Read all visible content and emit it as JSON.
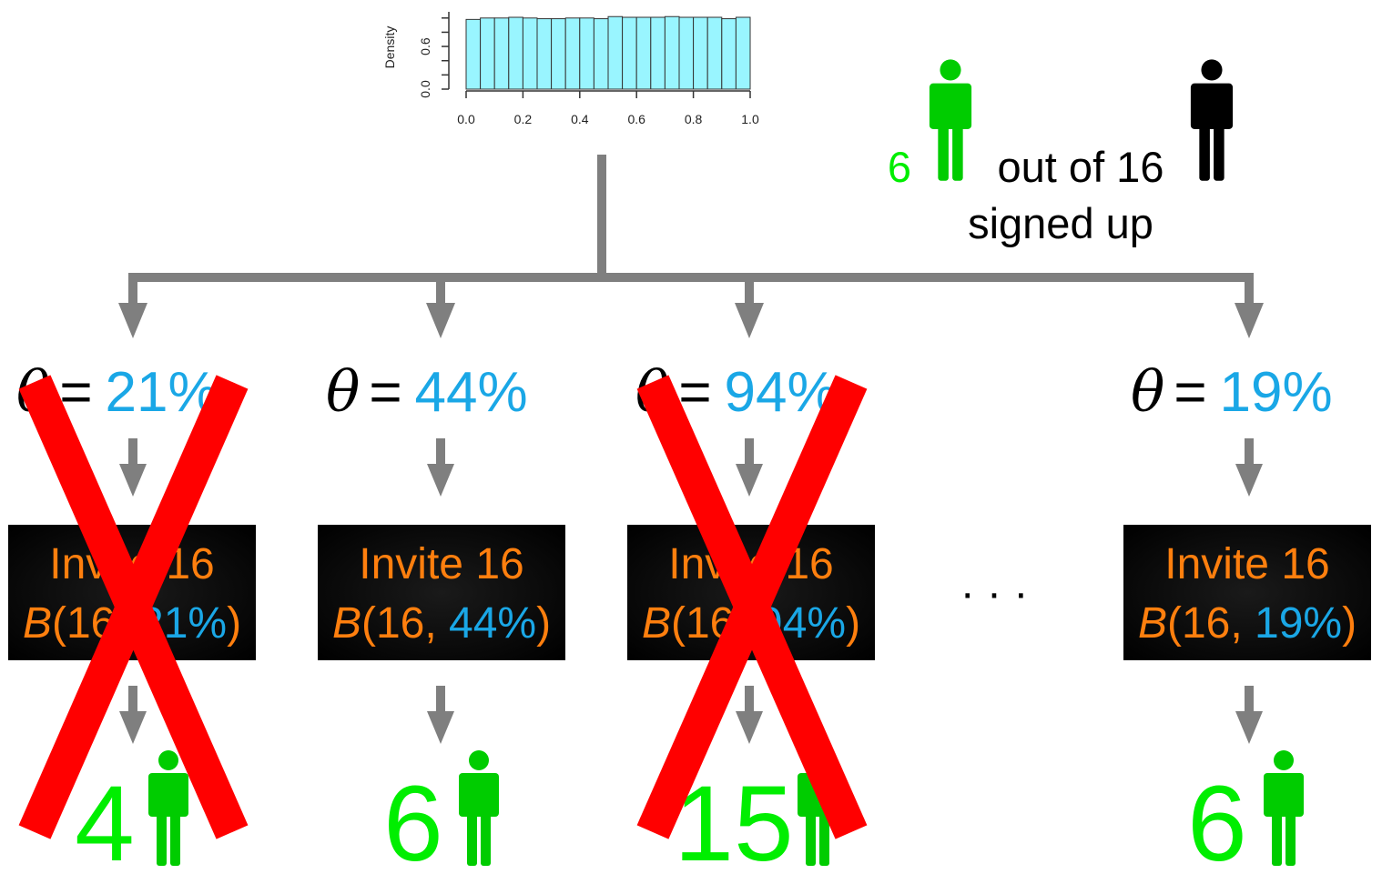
{
  "prior_histogram": {
    "ylabel": "Density",
    "x_ticks": [
      "0.0",
      "0.2",
      "0.4",
      "0.6",
      "0.8",
      "1.0"
    ],
    "y_ticks": [
      "0.0",
      "0.6"
    ],
    "bar_heights": [
      0.98,
      1.0,
      1.0,
      1.01,
      1.0,
      0.99,
      0.99,
      1.0,
      1.0,
      0.99,
      1.02,
      1.01,
      1.01,
      1.01,
      1.02,
      1.01,
      1.01,
      1.01,
      0.99,
      1.01
    ],
    "bar_color": "#99f5ff"
  },
  "observed": {
    "count": "6",
    "text_out_of": "out of 16",
    "text_signed_up": "signed up"
  },
  "branches": [
    {
      "theta_label": "=",
      "theta_value": "21%",
      "box_line1": "Invite 16",
      "box_B": "B",
      "box_n": "(16, ",
      "box_p": "21%",
      "box_close": ")",
      "result": "4",
      "rejected": true
    },
    {
      "theta_label": "=",
      "theta_value": "44%",
      "box_line1": "Invite 16",
      "box_B": "B",
      "box_n": "(16, ",
      "box_p": "44%",
      "box_close": ")",
      "result": "6",
      "rejected": false
    },
    {
      "theta_label": "=",
      "theta_value": "94%",
      "box_line1": "Invite 16",
      "box_B": "B",
      "box_n": "(16, ",
      "box_p": "94%",
      "box_close": ")",
      "result": "15",
      "rejected": true
    },
    {
      "theta_label": "=",
      "theta_value": "19%",
      "box_line1": "Invite 16",
      "box_B": "B",
      "box_n": "(16, ",
      "box_p": "19%",
      "box_close": ")",
      "result": "6",
      "rejected": false
    }
  ],
  "ellipsis": "· · ·",
  "colors": {
    "accepted_green": "#00ee00",
    "person_green": "#00cc00",
    "theta_blue": "#1aa7e6",
    "orange": "#ff7f0e",
    "cross_red": "#ff0000",
    "arrow_gray": "#7f7f7f"
  },
  "icons": [
    "person-icon-green",
    "person-icon-black",
    "cross-icon",
    "arrow-down-icon"
  ]
}
